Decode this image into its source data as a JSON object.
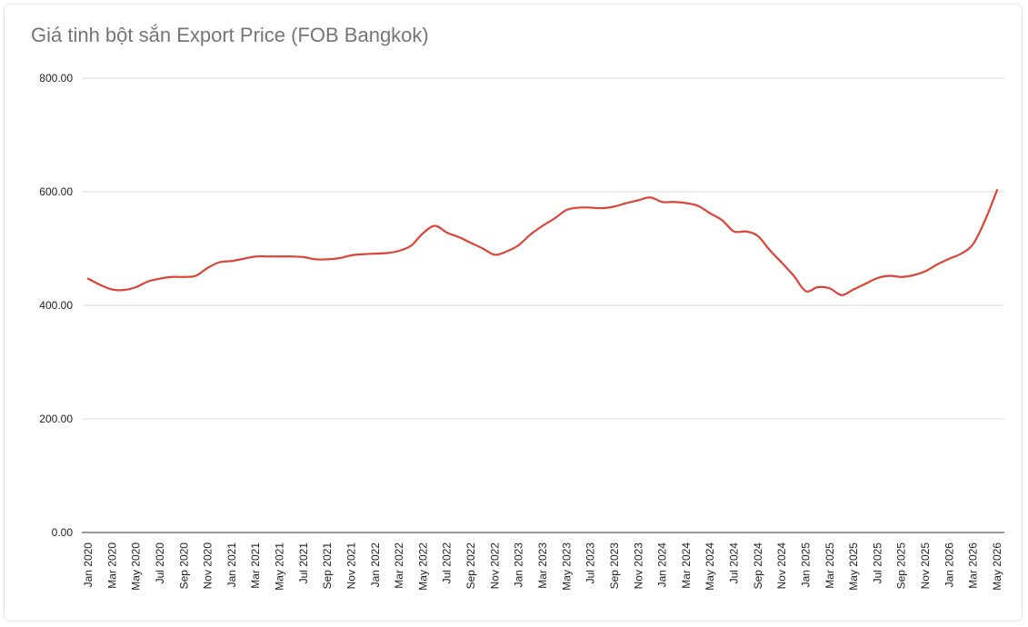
{
  "chart_data": {
    "type": "line",
    "title": "Giá tinh bột sắn Export Price (FOB Bangkok)",
    "xlabel": "",
    "ylabel": "",
    "ylim": [
      0,
      800
    ],
    "yticks": [
      "0.00",
      "200.00",
      "400.00",
      "600.00",
      "800.00"
    ],
    "grid": true,
    "x_tick_labels": [
      "Jan 2020",
      "Mar 2020",
      "May 2020",
      "Jul 2020",
      "Sep 2020",
      "Nov 2020",
      "Jan 2021",
      "Mar 2021",
      "May 2021",
      "Jul 2021",
      "Sep 2021",
      "Nov 2021",
      "Jan 2022",
      "Mar 2022",
      "May 2022",
      "Jul 2022",
      "Sep 2022",
      "Nov 2022",
      "Jan 2023",
      "Mar 2023",
      "May 2023",
      "Jul 2023",
      "Sep 2023",
      "Nov 2023",
      "Jan 2024",
      "Mar 2024",
      "May 2024",
      "Jul 2024",
      "Sep 2024",
      "Nov 2024",
      "Jan 2025",
      "Mar 2025",
      "May 2025",
      "Jul 2025",
      "Sep 2025",
      "Nov 2025",
      "Jan 2026",
      "Mar 2026",
      "May 2026"
    ],
    "line_color": "#db4437",
    "series": [
      {
        "x": [
          "Jan 2020",
          "Feb 2020",
          "Mar 2020",
          "Apr 2020",
          "May 2020",
          "Jun 2020",
          "Jul 2020",
          "Aug 2020",
          "Sep 2020",
          "Oct 2020",
          "Nov 2020",
          "Dec 2020",
          "Jan 2021",
          "Feb 2021",
          "Mar 2021",
          "Apr 2021",
          "May 2021",
          "Jun 2021",
          "Jul 2021",
          "Aug 2021",
          "Sep 2021",
          "Oct 2021",
          "Nov 2021",
          "Dec 2021",
          "Jan 2022",
          "Feb 2022",
          "Mar 2022",
          "Apr 2022",
          "May 2022",
          "Jun 2022",
          "Jul 2022",
          "Aug 2022",
          "Sep 2022",
          "Oct 2022",
          "Nov 2022",
          "Dec 2022",
          "Jan 2023",
          "Feb 2023",
          "Mar 2023",
          "Apr 2023",
          "May 2023",
          "Jun 2023",
          "Jul 2023",
          "Aug 2023",
          "Sep 2023",
          "Oct 2023",
          "Nov 2023",
          "Dec 2023",
          "Jan 2024",
          "Feb 2024",
          "Mar 2024",
          "Apr 2024",
          "May 2024",
          "Jun 2024",
          "Jul 2024",
          "Aug 2024",
          "Sep 2024",
          "Oct 2024",
          "Nov 2024",
          "Dec 2024",
          "Jan 2025",
          "Feb 2025",
          "Mar 2025",
          "Apr 2025",
          "May 2025",
          "Jun 2025",
          "Jul 2025",
          "Aug 2025",
          "Sep 2025",
          "Oct 2025",
          "Nov 2025",
          "Dec 2025",
          "Jan 2026",
          "Feb 2026",
          "Mar 2026",
          "Apr 2026",
          "May 2026"
        ],
        "values": [
          447,
          436,
          428,
          427,
          432,
          442,
          447,
          450,
          450,
          452,
          466,
          476,
          478,
          482,
          486,
          486,
          486,
          486,
          485,
          481,
          481,
          483,
          488,
          490,
          491,
          492,
          496,
          505,
          527,
          540,
          528,
          520,
          510,
          500,
          489,
          495,
          506,
          525,
          540,
          553,
          568,
          572,
          572,
          571,
          574,
          580,
          585,
          590,
          582,
          582,
          580,
          575,
          562,
          550,
          530,
          530,
          522,
          497,
          475,
          452,
          425,
          432,
          430,
          418,
          428,
          438,
          448,
          452,
          450,
          453,
          460,
          472,
          482,
          491,
          508,
          550,
          603
        ]
      }
    ]
  }
}
